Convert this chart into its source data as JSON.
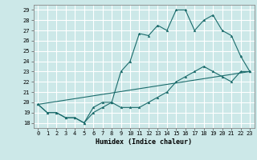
{
  "xlabel": "Humidex (Indice chaleur)",
  "bg_color": "#cce8e8",
  "grid_color": "#ffffff",
  "line_color": "#1a6b6b",
  "xlim": [
    -0.5,
    23.5
  ],
  "ylim": [
    17.5,
    29.5
  ],
  "xticks": [
    0,
    1,
    2,
    3,
    4,
    5,
    6,
    7,
    8,
    9,
    10,
    11,
    12,
    13,
    14,
    15,
    16,
    17,
    18,
    19,
    20,
    21,
    22,
    23
  ],
  "yticks": [
    18,
    19,
    20,
    21,
    22,
    23,
    24,
    25,
    26,
    27,
    28,
    29
  ],
  "line1_x": [
    0,
    1,
    2,
    3,
    4,
    5,
    6,
    7,
    8,
    9,
    10,
    11,
    12,
    13,
    14,
    15,
    16,
    17,
    18,
    19,
    20,
    21,
    22,
    23
  ],
  "line1_y": [
    19.8,
    19.0,
    19.0,
    18.5,
    18.5,
    18.0,
    19.0,
    19.5,
    20.0,
    19.5,
    19.5,
    19.5,
    20.0,
    20.5,
    21.0,
    22.0,
    22.5,
    23.0,
    23.5,
    23.0,
    22.5,
    22.0,
    23.0,
    23.0
  ],
  "line2_x": [
    0,
    1,
    2,
    3,
    4,
    5,
    6,
    7,
    8,
    9,
    10,
    11,
    12,
    13,
    14,
    15,
    16,
    17,
    18,
    19,
    20,
    21,
    22,
    23
  ],
  "line2_y": [
    19.8,
    19.0,
    19.0,
    18.5,
    18.5,
    18.0,
    19.5,
    20.0,
    20.0,
    23.0,
    24.0,
    26.7,
    26.5,
    27.5,
    27.0,
    29.0,
    29.0,
    27.0,
    28.0,
    28.5,
    27.0,
    26.5,
    24.5,
    23.0
  ],
  "line3_x": [
    0,
    23
  ],
  "line3_y": [
    19.8,
    23.0
  ],
  "xlabel_fontsize": 6,
  "tick_fontsize": 5
}
